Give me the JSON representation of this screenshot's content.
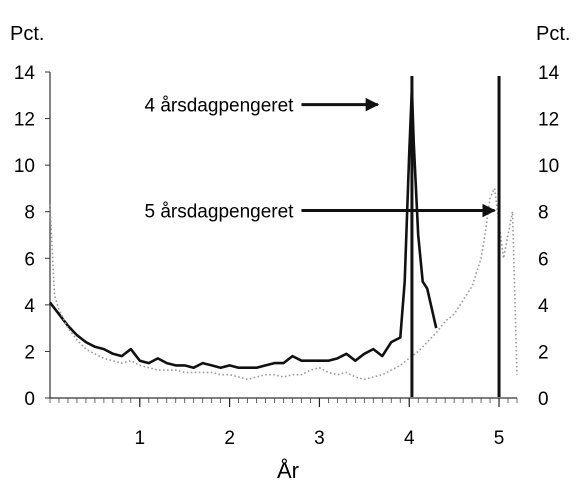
{
  "chart_data": {
    "type": "line",
    "title": "",
    "xlabel": "År",
    "ylabel_left": "Pct.",
    "ylabel_right": "Pct.",
    "xlim": [
      0,
      5.2
    ],
    "ylim": [
      0,
      14
    ],
    "x_ticks": [
      1,
      2,
      3,
      4,
      5
    ],
    "y_ticks": [
      0,
      2,
      4,
      6,
      8,
      10,
      12,
      14
    ],
    "grid": false,
    "legend": "none",
    "annotations": [
      {
        "text": "4 årsdagpengeret",
        "arrow_from": [
          2.8,
          12.6
        ],
        "arrow_to": [
          3.65,
          12.6
        ]
      },
      {
        "text": "5 årsdagpengeret",
        "arrow_from": [
          2.8,
          8.05
        ],
        "arrow_to": [
          4.95,
          8.05
        ]
      }
    ],
    "vertical_markers": [
      {
        "x": 4.03,
        "color": "#111111"
      },
      {
        "x": 5.0,
        "color": "#111111"
      }
    ],
    "series": [
      {
        "style": "solid",
        "color": "#111111",
        "x": [
          0.0,
          0.1,
          0.2,
          0.3,
          0.4,
          0.5,
          0.6,
          0.7,
          0.8,
          0.9,
          1.0,
          1.1,
          1.2,
          1.3,
          1.4,
          1.5,
          1.6,
          1.7,
          1.8,
          1.9,
          2.0,
          2.1,
          2.2,
          2.3,
          2.4,
          2.5,
          2.6,
          2.7,
          2.8,
          2.9,
          3.0,
          3.1,
          3.2,
          3.3,
          3.4,
          3.5,
          3.6,
          3.7,
          3.8,
          3.9,
          3.95,
          4.0,
          4.03,
          4.05,
          4.1,
          4.15,
          4.2,
          4.3
        ],
        "values": [
          4.1,
          3.6,
          3.1,
          2.7,
          2.4,
          2.2,
          2.1,
          1.9,
          1.8,
          2.1,
          1.6,
          1.5,
          1.7,
          1.5,
          1.4,
          1.4,
          1.3,
          1.5,
          1.4,
          1.3,
          1.4,
          1.3,
          1.3,
          1.3,
          1.4,
          1.5,
          1.5,
          1.8,
          1.6,
          1.6,
          1.6,
          1.6,
          1.7,
          1.9,
          1.6,
          1.9,
          2.1,
          1.8,
          2.4,
          2.6,
          5.0,
          10.5,
          13.3,
          11.0,
          7.0,
          5.0,
          4.7,
          3.0
        ]
      },
      {
        "style": "dotted",
        "color": "#9a9a9a",
        "x": [
          0.0,
          0.05,
          0.1,
          0.2,
          0.3,
          0.4,
          0.5,
          0.6,
          0.7,
          0.8,
          0.9,
          1.0,
          1.1,
          1.2,
          1.3,
          1.4,
          1.5,
          1.6,
          1.7,
          1.8,
          1.9,
          2.0,
          2.1,
          2.2,
          2.3,
          2.4,
          2.5,
          2.6,
          2.7,
          2.8,
          2.9,
          3.0,
          3.1,
          3.2,
          3.3,
          3.4,
          3.5,
          3.6,
          3.7,
          3.8,
          3.9,
          4.0,
          4.1,
          4.2,
          4.3,
          4.4,
          4.5,
          4.6,
          4.7,
          4.8,
          4.85,
          4.9,
          4.95,
          5.0,
          5.05,
          5.1,
          5.15,
          5.2
        ],
        "values": [
          8.3,
          4.4,
          3.8,
          3.0,
          2.5,
          2.1,
          1.9,
          1.7,
          1.6,
          1.5,
          1.6,
          1.4,
          1.3,
          1.2,
          1.2,
          1.2,
          1.1,
          1.1,
          1.1,
          1.1,
          1.0,
          1.0,
          0.9,
          0.8,
          0.9,
          1.0,
          1.0,
          0.9,
          1.0,
          1.0,
          1.2,
          1.3,
          1.1,
          1.0,
          1.1,
          0.9,
          0.8,
          0.9,
          1.0,
          1.2,
          1.4,
          1.7,
          2.0,
          2.4,
          2.8,
          3.3,
          3.6,
          4.2,
          4.8,
          6.0,
          7.2,
          8.6,
          9.0,
          7.5,
          6.0,
          7.0,
          8.0,
          1.0
        ]
      }
    ]
  }
}
